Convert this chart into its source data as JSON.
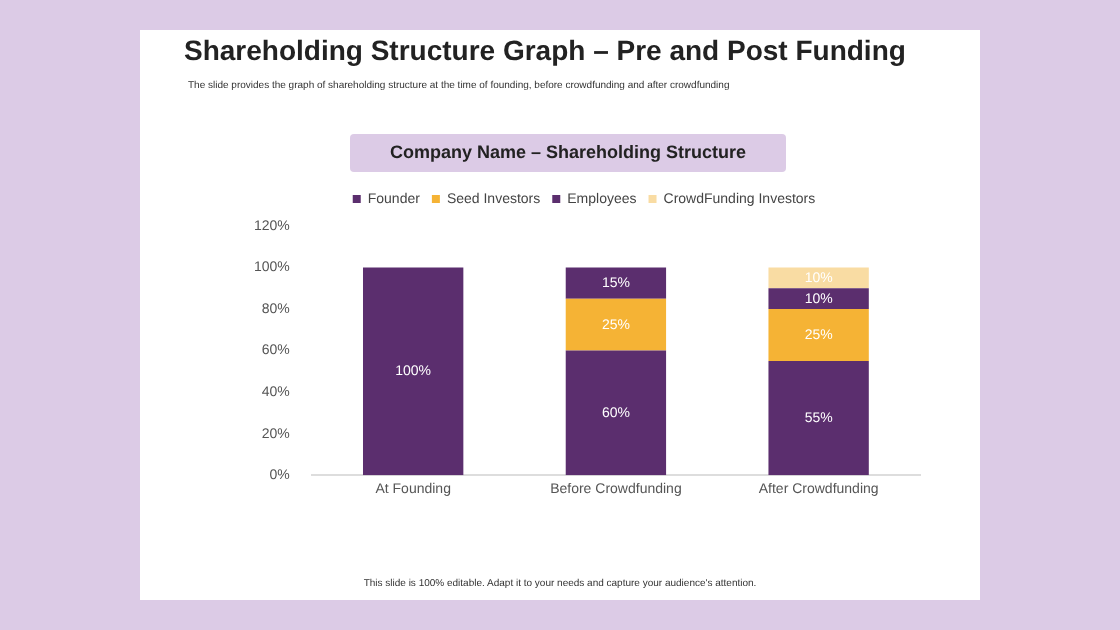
{
  "chart_data": {
    "type": "bar",
    "title": "Shareholding Structure Graph – Pre and Post Funding",
    "subtitle": "The slide provides the graph of shareholding structure at the time of founding, before crowdfunding and after crowdfunding",
    "annotations": [
      "Company Name – Shareholding Structure",
      "This slide is 100% editable. Adapt it to your needs and capture your audience's attention."
    ],
    "categories": [
      "At Founding",
      "Before Crowdfunding",
      "After Crowdfunding"
    ],
    "stacked": true,
    "series": [
      {
        "name": "Founder",
        "color": "#5b2e6e",
        "values": [
          100,
          60,
          55
        ],
        "value_labels": [
          "100%",
          "60%",
          "55%"
        ]
      },
      {
        "name": "Seed Investors",
        "color": "#f5b335",
        "values": [
          0,
          25,
          25
        ],
        "value_labels": [
          null,
          "25%",
          "25%"
        ]
      },
      {
        "name": "Employees",
        "color": "#5b2e6e",
        "values": [
          0,
          15,
          10
        ],
        "value_labels": [
          null,
          "15%",
          "10%"
        ]
      },
      {
        "name": "CrowdFunding Investors",
        "color": "#f9dca3",
        "values": [
          0,
          0,
          10
        ],
        "value_labels": [
          null,
          null,
          "10%"
        ]
      }
    ],
    "ylim": [
      0,
      120
    ],
    "yticks": [
      {
        "value": 0,
        "label": "0%"
      },
      {
        "value": 20,
        "label": "20%"
      },
      {
        "value": 40,
        "label": "40%"
      },
      {
        "value": 60,
        "label": "60%"
      },
      {
        "value": 80,
        "label": "80%"
      },
      {
        "value": 100,
        "label": "100%"
      },
      {
        "value": 120,
        "label": "120%"
      }
    ],
    "grid": false,
    "legend": "top"
  }
}
